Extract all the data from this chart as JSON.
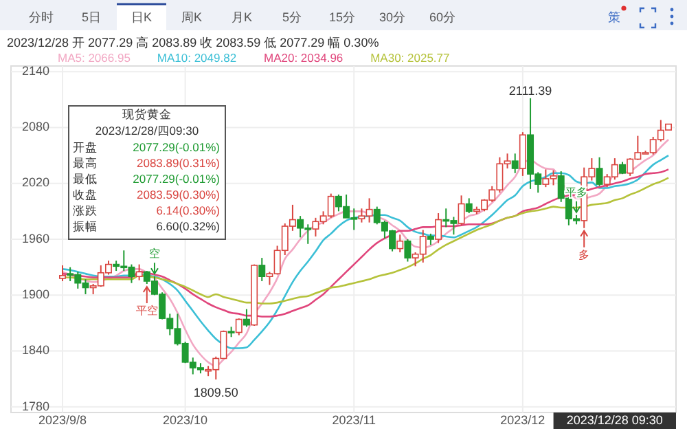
{
  "chart_data": [
    {
      "type": "candlestick",
      "title": "2023/12/28  开 2077.29  高 2083.89  收 2083.59  低 2077.29  幅 0.30%",
      "categories": [
        "2023/9/8",
        null,
        null,
        null,
        null,
        null,
        null,
        null,
        null,
        null,
        null,
        null,
        null,
        null,
        null,
        null,
        "2023/10",
        null,
        null,
        null,
        null,
        null,
        null,
        null,
        null,
        null,
        null,
        null,
        null,
        null,
        null,
        null,
        null,
        null,
        null,
        null,
        null,
        null,
        "2023/11",
        null,
        null,
        null,
        null,
        null,
        null,
        null,
        null,
        null,
        null,
        null,
        null,
        null,
        null,
        null,
        null,
        null,
        null,
        null,
        null,
        null,
        "2023/12",
        null,
        null,
        null,
        null,
        null,
        null,
        null,
        null,
        null,
        null,
        null,
        null,
        null,
        null,
        null,
        null,
        null,
        null,
        null
      ],
      "ohlc": [
        [
          1918,
          1932,
          1915,
          1921
        ],
        [
          1923,
          1930,
          1915,
          1922
        ],
        [
          1922,
          1925,
          1907,
          1913
        ],
        [
          1913,
          1917,
          1901,
          1908
        ],
        [
          1908,
          1912,
          1901,
          1910
        ],
        [
          1910,
          1932,
          1909,
          1924
        ],
        [
          1924,
          1937,
          1922,
          1933
        ],
        [
          1933,
          1937,
          1926,
          1931
        ],
        [
          1931,
          1948,
          1926,
          1930
        ],
        [
          1930,
          1933,
          1913,
          1920
        ],
        [
          1920,
          1933,
          1916,
          1925
        ],
        [
          1925,
          1926,
          1912,
          1915
        ],
        [
          1915,
          1920,
          1900,
          1901
        ],
        [
          1901,
          1903,
          1874,
          1875
        ],
        [
          1875,
          1880,
          1857,
          1864
        ],
        [
          1864,
          1880,
          1846,
          1848
        ],
        [
          1848,
          1850,
          1827,
          1828
        ],
        [
          1828,
          1833,
          1815,
          1822
        ],
        [
          1822,
          1827,
          1816,
          1820
        ],
        [
          1820,
          1824,
          1813,
          1820
        ],
        [
          1820,
          1834,
          1809.5,
          1832
        ],
        [
          1832,
          1862,
          1832,
          1861
        ],
        [
          1861,
          1866,
          1855,
          1860
        ],
        [
          1860,
          1875,
          1857,
          1874
        ],
        [
          1874,
          1885,
          1866,
          1868
        ],
        [
          1868,
          1933,
          1867,
          1932
        ],
        [
          1932,
          1940,
          1915,
          1920
        ],
        [
          1920,
          1925,
          1911,
          1923
        ],
        [
          1923,
          1953,
          1922,
          1948
        ],
        [
          1948,
          1977,
          1943,
          1974
        ],
        [
          1974,
          1997,
          1969,
          1981
        ],
        [
          1981,
          1985,
          1962,
          1972
        ],
        [
          1972,
          1976,
          1955,
          1971
        ],
        [
          1971,
          1983,
          1963,
          1979
        ],
        [
          1979,
          1990,
          1976,
          1985
        ],
        [
          1985,
          2009,
          1983,
          2006
        ],
        [
          2006,
          2008,
          1990,
          1995
        ],
        [
          1995,
          2008,
          1983,
          1983
        ],
        [
          1983,
          1993,
          1970,
          1982
        ],
        [
          1982,
          1993,
          1978,
          1985
        ],
        [
          1985,
          2004,
          1978,
          1992
        ],
        [
          1992,
          1995,
          1976,
          1978
        ],
        [
          1978,
          1980,
          1961,
          1969
        ],
        [
          1969,
          1970,
          1947,
          1950
        ],
        [
          1950,
          1965,
          1946,
          1958
        ],
        [
          1958,
          1960,
          1936,
          1940
        ],
        [
          1940,
          1946,
          1931,
          1944
        ],
        [
          1944,
          1970,
          1935,
          1963
        ],
        [
          1963,
          1966,
          1954,
          1960
        ],
        [
          1960,
          1988,
          1956,
          1981
        ],
        [
          1981,
          1993,
          1973,
          1980
        ],
        [
          1980,
          1984,
          1965,
          1977
        ],
        [
          1977,
          2007,
          1975,
          1998
        ],
        [
          1998,
          2004,
          1988,
          1990
        ],
        [
          1990,
          1995,
          1987,
          1992
        ],
        [
          1992,
          2003,
          1990,
          2002
        ],
        [
          2002,
          2017,
          2000,
          2013
        ],
        [
          2013,
          2048,
          2010,
          2041
        ],
        [
          2041,
          2052,
          2036,
          2044
        ],
        [
          2044,
          2052,
          2031,
          2036
        ],
        [
          2036,
          2075,
          2028,
          2072
        ],
        [
          2072,
          2111.39,
          2014,
          2030
        ],
        [
          2030,
          2032,
          2010,
          2019
        ],
        [
          2019,
          2035,
          2016,
          2025
        ],
        [
          2025,
          2034,
          2018,
          2028
        ],
        [
          2028,
          2033,
          2000,
          2004
        ],
        [
          2004,
          2005,
          1975,
          1982
        ],
        [
          1982,
          1986,
          1976,
          1980
        ],
        [
          1980,
          2037,
          1972,
          2027
        ],
        [
          2027,
          2047,
          2023,
          2036
        ],
        [
          2036,
          2048,
          2017,
          2019
        ],
        [
          2019,
          2030,
          2016,
          2027
        ],
        [
          2027,
          2047,
          2024,
          2040
        ],
        [
          2040,
          2043,
          2030,
          2031
        ],
        [
          2031,
          2047,
          2028,
          2046
        ],
        [
          2046,
          2071,
          2045,
          2053
        ],
        [
          2053,
          2055,
          2052,
          2053
        ],
        [
          2053,
          2070,
          2051,
          2067
        ],
        [
          2067,
          2088,
          2065,
          2077
        ],
        [
          2077.29,
          2083.89,
          2077.29,
          2083.59
        ]
      ],
      "series": [
        {
          "type": "line",
          "name": "MA5: 2066.95",
          "color": "#f2a7c3",
          "values": [
            1925,
            1922,
            1918,
            1916,
            1914,
            1915,
            1918,
            1921,
            1926,
            1928,
            1928,
            1924,
            1918,
            1907,
            1896,
            1881,
            1863,
            1847,
            1836,
            1828,
            1824,
            1831,
            1839,
            1849,
            1859,
            1879,
            1891,
            1903,
            1918,
            1939,
            1949,
            1960,
            1969,
            1975,
            1978,
            1983,
            1987,
            1990,
            1990,
            1990,
            1987,
            1984,
            1981,
            1975,
            1969,
            1959,
            1952,
            1951,
            1953,
            1958,
            1966,
            1972,
            1979,
            1985,
            1987,
            1992,
            1999,
            2008,
            2018,
            2027,
            2041,
            2045,
            2040,
            2036,
            2035,
            2021,
            2012,
            2004,
            2004,
            2006,
            2009,
            2018,
            2030,
            2031,
            2033,
            2039,
            2045,
            2050,
            2059,
            2067
          ]
        },
        {
          "type": "line",
          "name": "MA10: 2049.82",
          "color": "#3bbfd6",
          "values": [
            1928,
            1927,
            1925,
            1923,
            1921,
            1920,
            1920,
            1920,
            1921,
            1921,
            1922,
            1921,
            1920,
            1917,
            1912,
            1905,
            1894,
            1883,
            1872,
            1862,
            1853,
            1847,
            1843,
            1843,
            1844,
            1852,
            1861,
            1871,
            1884,
            1899,
            1914,
            1926,
            1936,
            1947,
            1959,
            1966,
            1974,
            1980,
            1983,
            1984,
            1985,
            1986,
            1986,
            1983,
            1980,
            1973,
            1968,
            1966,
            1964,
            1964,
            1963,
            1962,
            1965,
            1969,
            1973,
            1979,
            1986,
            1994,
            2002,
            2007,
            2017,
            2022,
            2024,
            2027,
            2031,
            2031,
            2029,
            2022,
            2020,
            2021,
            2015,
            2015,
            2017,
            2018,
            2020,
            2024,
            2032,
            2040,
            2045,
            2050
          ]
        },
        {
          "type": "line",
          "name": "MA20: 2034.96",
          "color": "#e0457b",
          "values": [
            1923,
            1922,
            1921,
            1920,
            1919,
            1919,
            1919,
            1919,
            1919,
            1919,
            1925,
            1924,
            1922,
            1920,
            1916,
            1912,
            1907,
            1901,
            1896,
            1891,
            1887,
            1884,
            1881,
            1880,
            1878,
            1878,
            1877,
            1877,
            1878,
            1880,
            1883,
            1886,
            1889,
            1895,
            1901,
            1909,
            1917,
            1925,
            1933,
            1941,
            1949,
            1956,
            1961,
            1965,
            1969,
            1969,
            1971,
            1973,
            1973,
            1974,
            1974,
            1974,
            1975,
            1976,
            1976,
            1976,
            1977,
            1980,
            1983,
            1985,
            1990,
            1992,
            1994,
            1998,
            2002,
            2005,
            2007,
            2008,
            2011,
            2014,
            2016,
            2018,
            2020,
            2022,
            2025,
            2027,
            2030,
            2031,
            2032,
            2035
          ]
        },
        {
          "type": "line",
          "name": "MA30: 2025.77",
          "color": "#b5c23a",
          "values": [
            1919,
            1919,
            1918,
            1917,
            1917,
            1917,
            1917,
            1917,
            1917,
            1917,
            1921,
            1920,
            1919,
            1917,
            1915,
            1912,
            1909,
            1905,
            1901,
            1898,
            1901,
            1898,
            1896,
            1894,
            1892,
            1892,
            1891,
            1891,
            1892,
            1894,
            1896,
            1898,
            1899,
            1902,
            1905,
            1908,
            1909,
            1911,
            1913,
            1915,
            1917,
            1920,
            1922,
            1924,
            1927,
            1930,
            1934,
            1939,
            1943,
            1949,
            1954,
            1958,
            1962,
            1966,
            1970,
            1973,
            1976,
            1980,
            1983,
            1985,
            1988,
            1990,
            1991,
            1993,
            1995,
            1994,
            1994,
            1994,
            1995,
            1997,
            1998,
            1999,
            2002,
            2004,
            2008,
            2011,
            2015,
            2019,
            2022,
            2026
          ]
        }
      ],
      "ylim": [
        1774,
        2146
      ],
      "yticks": [
        1780,
        1840,
        1900,
        1960,
        2020,
        2080,
        2140
      ],
      "grid": true,
      "legend": "top",
      "annotations": [
        {
          "text": "平空",
          "y": 1912
        },
        {
          "text": "空",
          "y": 1920
        },
        {
          "text": "平多",
          "y": 1986
        },
        {
          "text": "多",
          "y": 1972
        },
        {
          "text": "1809.50",
          "y": 1809.5
        },
        {
          "text": "2111.39",
          "y": 2111.39
        },
        "2023/12/28 09:30"
      ]
    },
    {
      "type": "other",
      "title": "现货黄金",
      "subtitle": "2023/12/28/四09:30",
      "annotations": [
        "开盘",
        "2077.29(-0.01%)",
        "最高",
        "2083.89(0.31%)",
        "最低",
        "2077.29(-0.01%)",
        "收盘",
        "2083.59(0.30%)",
        "涨跌",
        "6.14(0.30%)",
        "振幅",
        "6.60(0.32%)"
      ]
    },
    {
      "type": "other",
      "annotations": [
        "分时",
        "5日",
        "日K",
        "周K",
        "月K",
        "5分",
        "15分",
        "30分",
        "60分",
        "策"
      ]
    }
  ]
}
